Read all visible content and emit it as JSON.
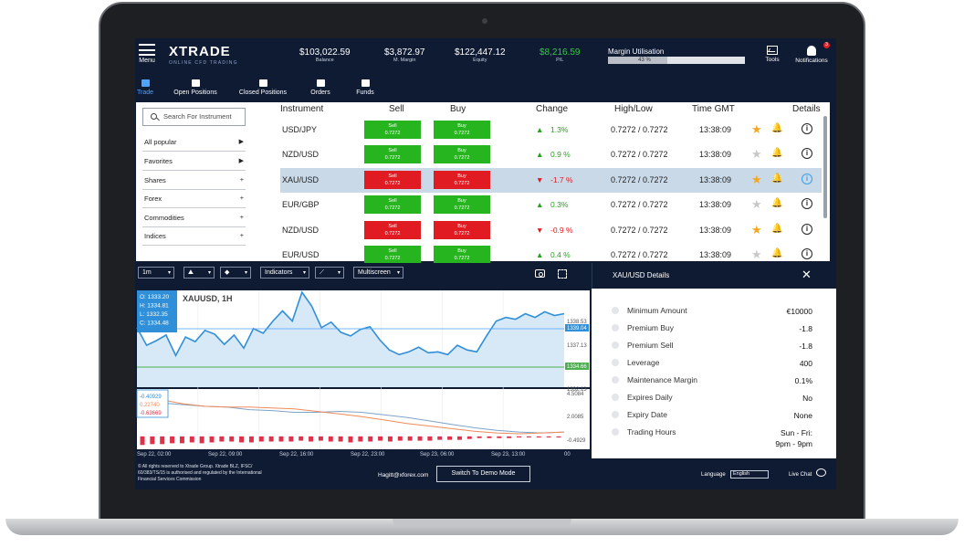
{
  "header": {
    "menu_label": "Menu",
    "logo": "XTRADE",
    "logo_tagline": "ONLINE CFD TRADING",
    "stats": [
      {
        "value": "$103,022.59",
        "label": "Balance"
      },
      {
        "value": "$3,872.97",
        "label": "M. Margin"
      },
      {
        "value": "$122,447.12",
        "label": "Equity"
      },
      {
        "value": "$8,216.59",
        "label": "P/L"
      }
    ],
    "margin": {
      "title": "Margin Utilisation",
      "percent_label": "43 %",
      "percent": 43
    },
    "tools_label": "Tools",
    "notifications_label": "Notifications",
    "notifications_count": "3"
  },
  "nav": {
    "tabs": [
      {
        "label": "Trade",
        "active": true
      },
      {
        "label": "Open Positions"
      },
      {
        "label": "Closed Positions"
      },
      {
        "label": "Orders"
      },
      {
        "label": "Funds"
      }
    ]
  },
  "sidebar": {
    "search_placeholder": "Search For Instrument",
    "categories": [
      {
        "label": "All popular",
        "arrow": "▶"
      },
      {
        "label": "Favorites",
        "arrow": "▶"
      },
      {
        "label": "Shares",
        "arrow": "+"
      },
      {
        "label": "Forex",
        "arrow": "+"
      },
      {
        "label": "Commodities",
        "arrow": "+"
      },
      {
        "label": "Indices",
        "arrow": "+"
      }
    ]
  },
  "table": {
    "headers": [
      "Instrument",
      "Sell",
      "Buy",
      "Change",
      "High/Low",
      "Time GMT",
      "Details"
    ],
    "sell_label": "Sell",
    "buy_label": "Buy",
    "rows": [
      {
        "instrument": "USD/JPY",
        "sell": "0.7272",
        "buy": "0.7272",
        "direction": "up",
        "change": "1.3%",
        "highlow": "0.7272 / 0.7272",
        "time": "13:38:09",
        "fav": true,
        "selected": false
      },
      {
        "instrument": "NZD/USD",
        "sell": "0.7272",
        "buy": "0.7272",
        "direction": "up",
        "change": "0.9 %",
        "highlow": "0.7272 / 0.7272",
        "time": "13:38:09",
        "fav": false,
        "selected": false
      },
      {
        "instrument": "XAU/USD",
        "sell": "0.7272",
        "buy": "0.7272",
        "direction": "down",
        "change": "-1.7 %",
        "highlow": "0.7272 / 0.7272",
        "time": "13:38:09",
        "fav": true,
        "selected": true
      },
      {
        "instrument": "EUR/GBP",
        "sell": "0.7272",
        "buy": "0.7272",
        "direction": "up",
        "change": "0.3%",
        "highlow": "0.7272 / 0.7272",
        "time": "13:38:09",
        "fav": false,
        "selected": false
      },
      {
        "instrument": "NZD/USD",
        "sell": "0.7272",
        "buy": "0.7272",
        "direction": "down",
        "change": "-0.9 %",
        "highlow": "0.7272 / 0.7272",
        "time": "13:38:09",
        "fav": true,
        "selected": false
      },
      {
        "instrument": "EUR/USD",
        "sell": "0.7272",
        "buy": "0.7272",
        "direction": "up",
        "change": "0.4 %",
        "highlow": "0.7272 / 0.7272",
        "time": "13:38:09",
        "fav": false,
        "selected": false
      }
    ]
  },
  "chart_controls": {
    "timeframe": "1m",
    "indicators": "Indicators",
    "multiscreen": "Multiscreen"
  },
  "chart_data": {
    "type": "line",
    "title": "XAUUSD, 1H",
    "ohlc": [
      "O: 1333.20",
      "H: 1334.81",
      "L: 1332.35",
      "C: 1334.48"
    ],
    "price_labels": [
      "1338.53",
      "1339.04",
      "1337.13",
      "1334.66",
      "1332.13"
    ],
    "indicator_labels": [
      "4.5084",
      "2.0085",
      "-0.4929"
    ],
    "indicator_values": [
      "-0.40929",
      "0.22740",
      "-0.63669"
    ],
    "x_labels": [
      "Sep 22, 02:00",
      "Sep 22, 09:00",
      "Sep 22, 16:00",
      "Sep 22, 23:00",
      "Sep 23, 06:00",
      "Sep 23, 13:00",
      "00"
    ],
    "ylim": [
      1330.8,
      1341.2
    ],
    "price_series": [
      1337.2,
      1335.3,
      1335.8,
      1336.4,
      1334.2,
      1336.2,
      1335.7,
      1336.9,
      1336.5,
      1335.4,
      1336.4,
      1335.0,
      1337.1,
      1336.6,
      1337.9,
      1339.0,
      1337.9,
      1341.0,
      1339.5,
      1337.2,
      1337.8,
      1336.7,
      1336.3,
      1337.0,
      1337.3,
      1335.9,
      1334.8,
      1334.3,
      1334.6,
      1335.1,
      1334.5,
      1334.6,
      1334.3,
      1335.3,
      1334.8,
      1334.6,
      1336.3,
      1337.9,
      1338.3,
      1338.1,
      1338.7,
      1338.3,
      1338.9,
      1338.5,
      1338.7
    ],
    "ind_ylim": [
      -1.5,
      5.5
    ],
    "ind_series_a": [
      4.2,
      3.9,
      3.7,
      3.5,
      3.4,
      3.1,
      3.0,
      2.8,
      2.8,
      2.9,
      2.8,
      2.5,
      2.2,
      1.8,
      1.4,
      1.0,
      0.7,
      0.5,
      0.4,
      0.5
    ],
    "ind_series_b": [
      4.8,
      4.3,
      3.8,
      3.5,
      3.4,
      3.4,
      3.3,
      3.2,
      2.9,
      2.6,
      2.3,
      1.9,
      1.5,
      1.2,
      0.9,
      0.6,
      0.4,
      0.3,
      0.4,
      0.5
    ],
    "histogram": [
      -1.0,
      -0.9,
      -0.9,
      -0.8,
      -0.8,
      -0.7,
      -0.8,
      -0.7,
      -0.6,
      -0.6,
      -0.7,
      -0.7,
      -0.6,
      -0.6,
      -0.6,
      -0.6,
      -0.5,
      -0.6,
      -0.5,
      -0.6,
      -0.6,
      -0.7,
      -0.6,
      -0.6,
      -0.5,
      -0.6,
      -0.5,
      -0.5,
      -0.5,
      -0.5,
      -0.4,
      -0.4,
      -0.4,
      -0.3,
      -0.2,
      -0.2,
      -0.2,
      -0.2,
      -0.1,
      0.0,
      0.0,
      -0.1,
      -0.1
    ]
  },
  "details": {
    "title": "XAU/USD Details",
    "rows": [
      {
        "label": "Minimum Amount",
        "value": "€10000"
      },
      {
        "label": "Premium Buy",
        "value": "-1.8"
      },
      {
        "label": "Premium Sell",
        "value": "-1.8"
      },
      {
        "label": "Leverage",
        "value": "400"
      },
      {
        "label": "Maintenance Margin",
        "value": "0.1%"
      },
      {
        "label": "Expires Daily",
        "value": "No"
      },
      {
        "label": "Expiry Date",
        "value": "None"
      },
      {
        "label": "Trading Hours",
        "value": "Sun - Fri:",
        "value2": "9pm - 9pm"
      }
    ]
  },
  "footer": {
    "copyright": "© All rights reserved to Xtrade Group. Xtrade BLZ, IFSC/ 60/383/TS/15 is authorised and regulated by the International Financial Services Commission",
    "email": "Hagitt@xforex.com",
    "demo_button": "Switch To Demo Mode",
    "language_label": "Language",
    "language_value": "English",
    "live_chat": "Live Chat"
  },
  "colors": {
    "bg": "#0f1b33",
    "buy_green": "#26b51e",
    "sell_red": "#e01b22",
    "accent": "#4ea3ff",
    "chart_line": "#2f8fd8"
  }
}
